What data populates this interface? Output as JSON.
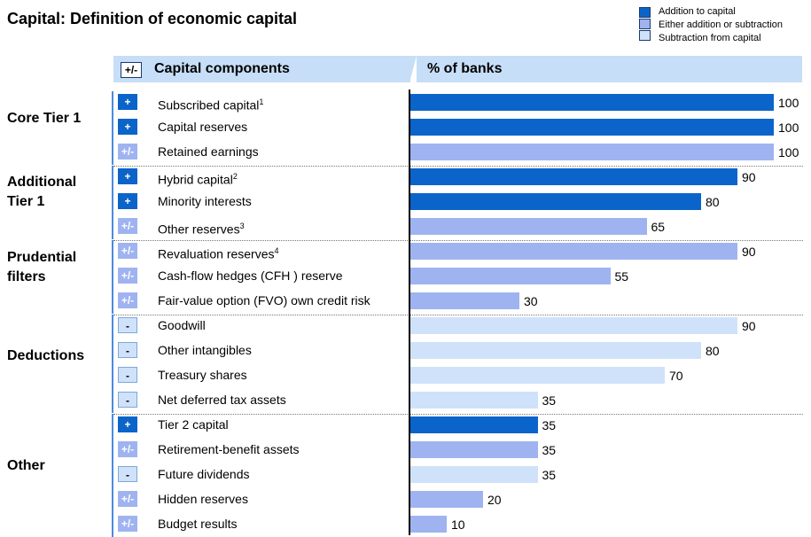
{
  "title": "Capital: Definition of economic capital",
  "legend": [
    {
      "label": "Addition to capital",
      "color": "#0b64c9"
    },
    {
      "label": "Either addition or subtraction",
      "color": "#9fb3f0"
    },
    {
      "label": "Subtraction from capital",
      "color": "#cfe2fa"
    }
  ],
  "header": {
    "sign": "+/-",
    "components": "Capital components",
    "percent": "% of banks"
  },
  "sign_labels": {
    "add": "+",
    "either": "+/-",
    "sub": "-"
  },
  "groups": [
    {
      "label": "Core Tier 1"
    },
    {
      "label": "Additional Tier 1"
    },
    {
      "label": "Prudential filters"
    },
    {
      "label": "Deductions"
    },
    {
      "label": "Other"
    }
  ],
  "chart_data": {
    "type": "bar",
    "orientation": "horizontal",
    "title": "Capital: Definition of economic capital",
    "xlabel": "% of banks",
    "xlim": [
      0,
      100
    ],
    "categories": [
      "Subscribed capital",
      "Capital reserves",
      "Retained earnings",
      "Hybrid capital",
      "Minority interests",
      "Other reserves",
      "Revaluation reserves",
      "Cash-flow hedges (CFH ) reserve",
      "Fair-value option (FVO) own credit risk",
      "Goodwill",
      "Other intangibles",
      "Treasury shares",
      "Net deferred tax assets",
      "Tier 2 capital",
      "Retirement-benefit assets",
      "Future dividends",
      "Hidden reserves",
      "Budget results"
    ],
    "footnotes": [
      "1",
      "",
      "",
      "2",
      "",
      "3",
      "4",
      "",
      "",
      "",
      "",
      "",
      "",
      "",
      "",
      "",
      "",
      ""
    ],
    "values": [
      100,
      100,
      100,
      90,
      80,
      65,
      90,
      55,
      30,
      90,
      80,
      70,
      35,
      35,
      35,
      35,
      20,
      10
    ],
    "treatment": [
      "add",
      "add",
      "either",
      "add",
      "add",
      "either",
      "either",
      "either",
      "either",
      "sub",
      "sub",
      "sub",
      "sub",
      "add",
      "either",
      "sub",
      "either",
      "either"
    ],
    "group": [
      0,
      0,
      0,
      1,
      1,
      1,
      2,
      2,
      2,
      3,
      3,
      3,
      3,
      4,
      4,
      4,
      4,
      4
    ]
  }
}
